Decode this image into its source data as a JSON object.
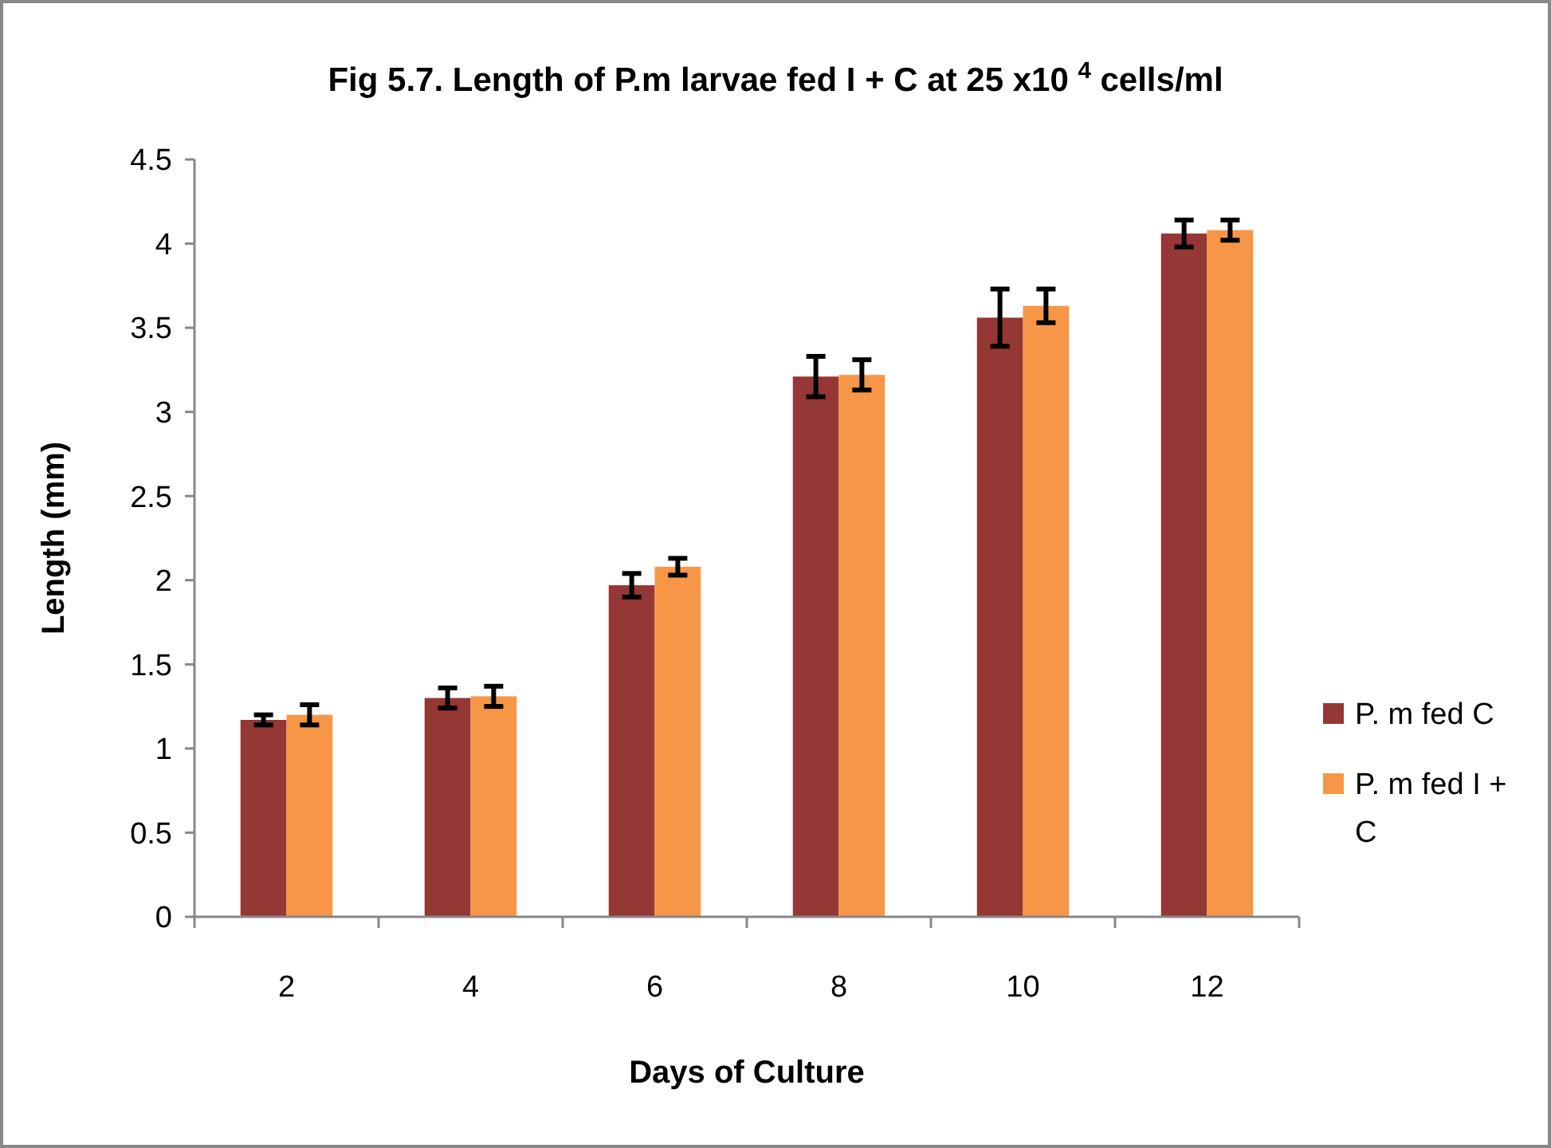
{
  "chart_data": {
    "type": "bar",
    "title": "Fig 5.7. Length of P.m larvae fed I + C  at 25 x10 $^{4}$ cells/ml",
    "xlabel": "Days of Culture",
    "ylabel": "Length (mm)",
    "categories": [
      "2",
      "4",
      "6",
      "8",
      "10",
      "12"
    ],
    "series": [
      {
        "name": "P. m fed C",
        "color": "#953735",
        "values": [
          1.17,
          1.3,
          1.97,
          3.21,
          3.56,
          4.06
        ],
        "errors": [
          0.03,
          0.06,
          0.07,
          0.12,
          0.17,
          0.08
        ]
      },
      {
        "name": "P. m fed I + C",
        "color": "#f79646",
        "values": [
          1.2,
          1.31,
          2.08,
          3.22,
          3.63,
          4.08
        ],
        "errors": [
          0.06,
          0.06,
          0.05,
          0.09,
          0.1,
          0.06
        ]
      }
    ],
    "ylim": [
      0,
      4.5
    ],
    "yticks": [
      0,
      0.5,
      1,
      1.5,
      2,
      2.5,
      3,
      3.5,
      4,
      4.5
    ],
    "grid": false,
    "legend": "right"
  }
}
